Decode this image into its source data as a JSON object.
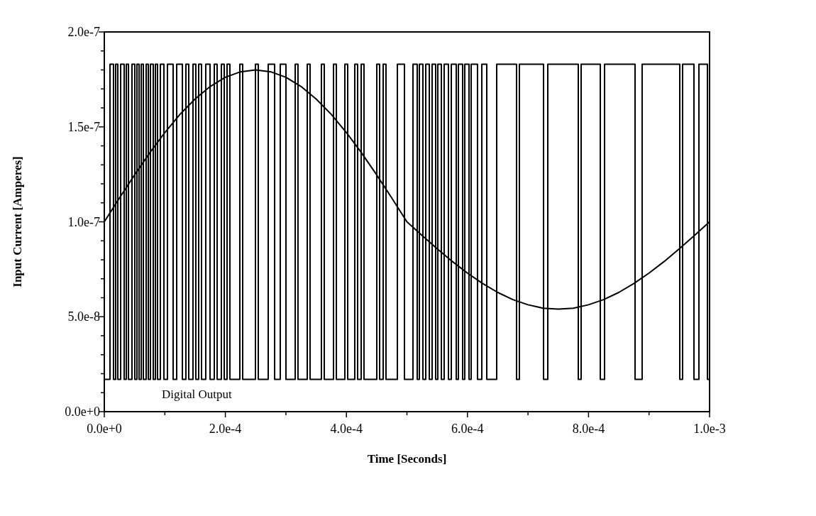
{
  "chart_data": {
    "type": "line",
    "xlabel": "Time [Seconds]",
    "ylabel": "Input Current [Amperes]",
    "xlim": [
      0,
      0.001
    ],
    "ylim": [
      0,
      2e-07
    ],
    "xticks": [
      {
        "value": 0,
        "label": "0.0e+0"
      },
      {
        "value": 0.0001,
        "label": null
      },
      {
        "value": 0.0002,
        "label": "2.0e-4"
      },
      {
        "value": 0.0003,
        "label": null
      },
      {
        "value": 0.0004,
        "label": "4.0e-4"
      },
      {
        "value": 0.0005,
        "label": null
      },
      {
        "value": 0.0006,
        "label": "6.0e-4"
      },
      {
        "value": 0.0007,
        "label": null
      },
      {
        "value": 0.0008,
        "label": "8.0e-4"
      },
      {
        "value": 0.0009,
        "label": null
      },
      {
        "value": 0.001,
        "label": "1.0e-3"
      }
    ],
    "yticks": [
      {
        "value": 0,
        "label": "0.0e+0"
      },
      {
        "value": 1e-08,
        "label": null
      },
      {
        "value": 2e-08,
        "label": null
      },
      {
        "value": 3e-08,
        "label": null
      },
      {
        "value": 4e-08,
        "label": null
      },
      {
        "value": 5e-08,
        "label": "5.0e-8"
      },
      {
        "value": 6e-08,
        "label": null
      },
      {
        "value": 7e-08,
        "label": null
      },
      {
        "value": 8e-08,
        "label": null
      },
      {
        "value": 9e-08,
        "label": null
      },
      {
        "value": 1e-07,
        "label": "1.0e-7"
      },
      {
        "value": 1.1e-07,
        "label": null
      },
      {
        "value": 1.2e-07,
        "label": null
      },
      {
        "value": 1.3e-07,
        "label": null
      },
      {
        "value": 1.4e-07,
        "label": null
      },
      {
        "value": 1.5e-07,
        "label": "1.5e-7"
      },
      {
        "value": 1.6e-07,
        "label": null
      },
      {
        "value": 1.7e-07,
        "label": null
      },
      {
        "value": 1.8e-07,
        "label": null
      },
      {
        "value": 1.9e-07,
        "label": null
      },
      {
        "value": 2e-07,
        "label": "2.0e-7"
      }
    ],
    "grid": false,
    "series": [
      {
        "color": "#000000",
        "x": [
          0,
          2.5e-05,
          5e-05,
          7.5e-05,
          0.0001,
          0.000125,
          0.00015,
          0.000175,
          0.0002,
          0.000225,
          0.00025,
          0.000275,
          0.0003,
          0.000325,
          0.00035,
          0.000375,
          0.0004,
          0.000425,
          0.00045,
          0.000475,
          0.0005,
          0.000525,
          0.00055,
          0.000575,
          0.0006,
          0.000625,
          0.00065,
          0.000675,
          0.0007,
          0.000725,
          0.00075,
          0.000775,
          0.0008,
          0.000825,
          0.00085,
          0.000875,
          0.0009,
          0.000925,
          0.00095,
          0.000975,
          0.001
        ],
        "values": [
          1e-07,
          1.125e-07,
          1.247e-07,
          1.363e-07,
          1.47e-07,
          1.566e-07,
          1.647e-07,
          1.713e-07,
          1.761e-07,
          1.79e-07,
          1.8e-07,
          1.79e-07,
          1.761e-07,
          1.713e-07,
          1.647e-07,
          1.566e-07,
          1.47e-07,
          1.363e-07,
          1.247e-07,
          1.125e-07,
          1e-07,
          9.28e-08,
          8.58e-08,
          7.91e-08,
          7.3e-08,
          6.75e-08,
          6.28e-08,
          5.9e-08,
          5.63e-08,
          5.45e-08,
          5.4e-08,
          5.45e-08,
          5.63e-08,
          5.9e-08,
          6.28e-08,
          6.75e-08,
          7.3e-08,
          7.91e-08,
          8.58e-08,
          9.28e-08,
          1e-07
        ]
      },
      {
        "type": "step",
        "name": "Digital Output",
        "color": "#000000",
        "x": [
          0,
          9.4e-06,
          1.52e-05,
          1.88e-05,
          2.23e-05,
          2.7e-05,
          3.28e-05,
          3.63e-05,
          3.99e-05,
          4.57e-05,
          5.04e-05,
          5.39e-05,
          5.74e-05,
          6.1e-05,
          6.45e-05,
          6.92e-05,
          7.27e-05,
          7.62e-05,
          8.09e-05,
          8.44e-05,
          8.79e-05,
          9.26e-05,
          9.85e-05,
          0.0001043,
          0.0001137,
          0.0001196,
          0.000129,
          0.0001348,
          0.0001395,
          0.0001465,
          0.0001512,
          0.0001559,
          0.0001606,
          0.0001676,
          0.0001747,
          0.0001817,
          0.0001864,
          0.0001934,
          0.0001981,
          0.0002028,
          0.0002075,
          0.0002239,
          0.0002286,
          0.0002497,
          0.0002544,
          0.0002708,
          0.0002814,
          0.0002907,
          0.0003001,
          0.0003154,
          0.00032,
          0.0003353,
          0.00034,
          0.0003587,
          0.0003634,
          0.0003787,
          0.0003834,
          0.0003974,
          0.0004021,
          0.0004138,
          0.0004185,
          0.0004244,
          0.0004291,
          0.0004502,
          0.0004549,
          0.0004607,
          0.0004654,
          0.0004842,
          0.0004959,
          0.00051,
          0.000517,
          0.0005205,
          0.0005264,
          0.0005311,
          0.000537,
          0.0005416,
          0.0005475,
          0.000551,
          0.0005569,
          0.0005615,
          0.0005686,
          0.0005733,
          0.0005815,
          0.000585,
          0.000592,
          0.0005955,
          0.0006026,
          0.0006061,
          0.0006166,
          0.0006237,
          0.0006319,
          0.0006483,
          0.0006811,
          0.0006858,
          0.0007257,
          0.0007327,
          0.0007831,
          0.0007878,
          0.0008195,
          0.0008265,
          0.0008769,
          0.0008886,
          0.0009508,
          0.0009554,
          0.0009742,
          0.0009824,
          0.0009965,
          0.001
        ],
        "values": [
          1.7e-08,
          1.83e-07,
          1.7e-08,
          1.83e-07,
          1.7e-08,
          1.83e-07,
          1.7e-08,
          1.83e-07,
          1.7e-08,
          1.83e-07,
          1.7e-08,
          1.83e-07,
          1.7e-08,
          1.83e-07,
          1.7e-08,
          1.83e-07,
          1.7e-08,
          1.83e-07,
          1.7e-08,
          1.83e-07,
          1.7e-08,
          1.83e-07,
          1.7e-08,
          1.83e-07,
          1.7e-08,
          1.83e-07,
          1.7e-08,
          1.83e-07,
          1.7e-08,
          1.83e-07,
          1.7e-08,
          1.83e-07,
          1.7e-08,
          1.83e-07,
          1.7e-08,
          1.83e-07,
          1.7e-08,
          1.83e-07,
          1.7e-08,
          1.83e-07,
          1.7e-08,
          1.83e-07,
          1.7e-08,
          1.83e-07,
          1.7e-08,
          1.83e-07,
          1.7e-08,
          1.83e-07,
          1.7e-08,
          1.83e-07,
          1.7e-08,
          1.83e-07,
          1.7e-08,
          1.83e-07,
          1.7e-08,
          1.83e-07,
          1.7e-08,
          1.83e-07,
          1.7e-08,
          1.83e-07,
          1.7e-08,
          1.83e-07,
          1.7e-08,
          1.83e-07,
          1.7e-08,
          1.83e-07,
          1.7e-08,
          1.83e-07,
          1.7e-08,
          1.83e-07,
          1.7e-08,
          1.83e-07,
          1.7e-08,
          1.83e-07,
          1.7e-08,
          1.83e-07,
          1.7e-08,
          1.83e-07,
          1.7e-08,
          1.83e-07,
          1.7e-08,
          1.83e-07,
          1.7e-08,
          1.83e-07,
          1.7e-08,
          1.83e-07,
          1.7e-08,
          1.83e-07,
          1.7e-08,
          1.83e-07,
          1.7e-08,
          1.83e-07,
          1.7e-08,
          1.83e-07,
          1.7e-08,
          1.83e-07,
          1.7e-08,
          1.83e-07,
          1.7e-08,
          1.83e-07,
          1.7e-08,
          1.83e-07,
          1.7e-08,
          1.83e-07,
          1.7e-08,
          1.83e-07,
          1.7e-08,
          1.7e-08
        ]
      }
    ]
  }
}
